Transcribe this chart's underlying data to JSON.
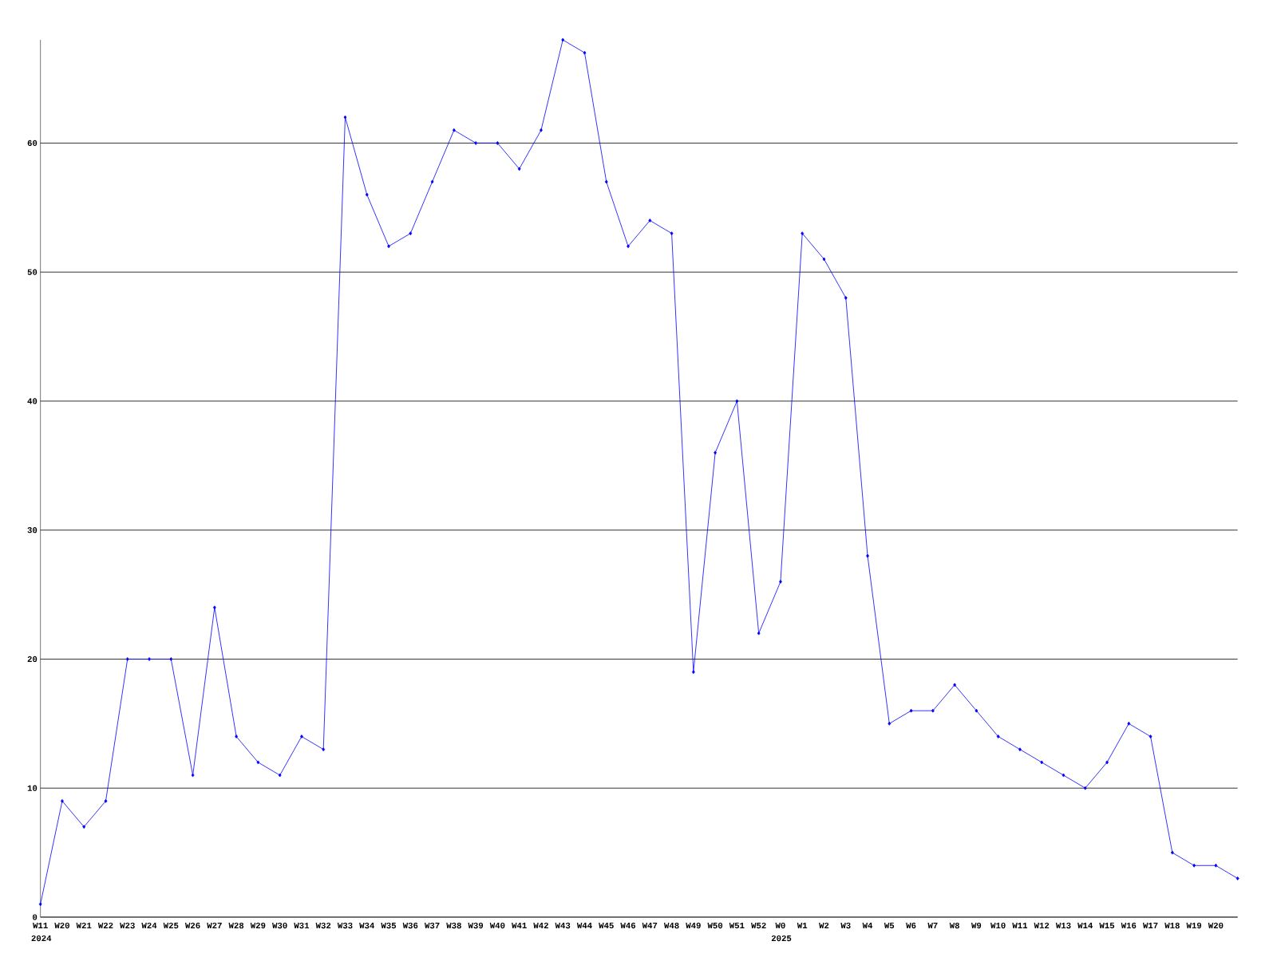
{
  "chart_data": {
    "type": "line",
    "categories": [
      "W11",
      "W20",
      "W21",
      "W22",
      "W23",
      "W24",
      "W25",
      "W26",
      "W27",
      "W28",
      "W29",
      "W30",
      "W31",
      "W32",
      "W33",
      "W34",
      "W35",
      "W36",
      "W37",
      "W38",
      "W39",
      "W40",
      "W41",
      "W42",
      "W43",
      "W44",
      "W45",
      "W46",
      "W47",
      "W48",
      "W49",
      "W50",
      "W51",
      "W52",
      "W0",
      "W1",
      "W2",
      "W3",
      "W4",
      "W5",
      "W6",
      "W7",
      "W8",
      "W9",
      "W10",
      "W11",
      "W12",
      "W13",
      "W14",
      "W15",
      "W16",
      "W17",
      "W18",
      "W19",
      "W20",
      null
    ],
    "values": [
      1,
      9,
      7,
      9,
      20,
      20,
      20,
      11,
      24,
      14,
      12,
      11,
      14,
      13,
      62,
      56,
      52,
      53,
      57,
      61,
      60,
      60,
      58,
      61,
      68,
      67,
      57,
      52,
      54,
      53,
      19,
      36,
      40,
      22,
      26,
      53,
      51,
      48,
      28,
      15,
      16,
      16,
      18,
      16,
      14,
      13,
      12,
      11,
      10,
      12,
      15,
      14,
      5,
      4,
      4,
      3
    ],
    "color": "#0000ff",
    "ylim": [
      0,
      68
    ],
    "yticks": [
      0,
      10,
      20,
      30,
      40,
      50,
      60
    ],
    "grid": "y",
    "marker": "diamond",
    "annotations": [
      "2024",
      "2025"
    ]
  }
}
